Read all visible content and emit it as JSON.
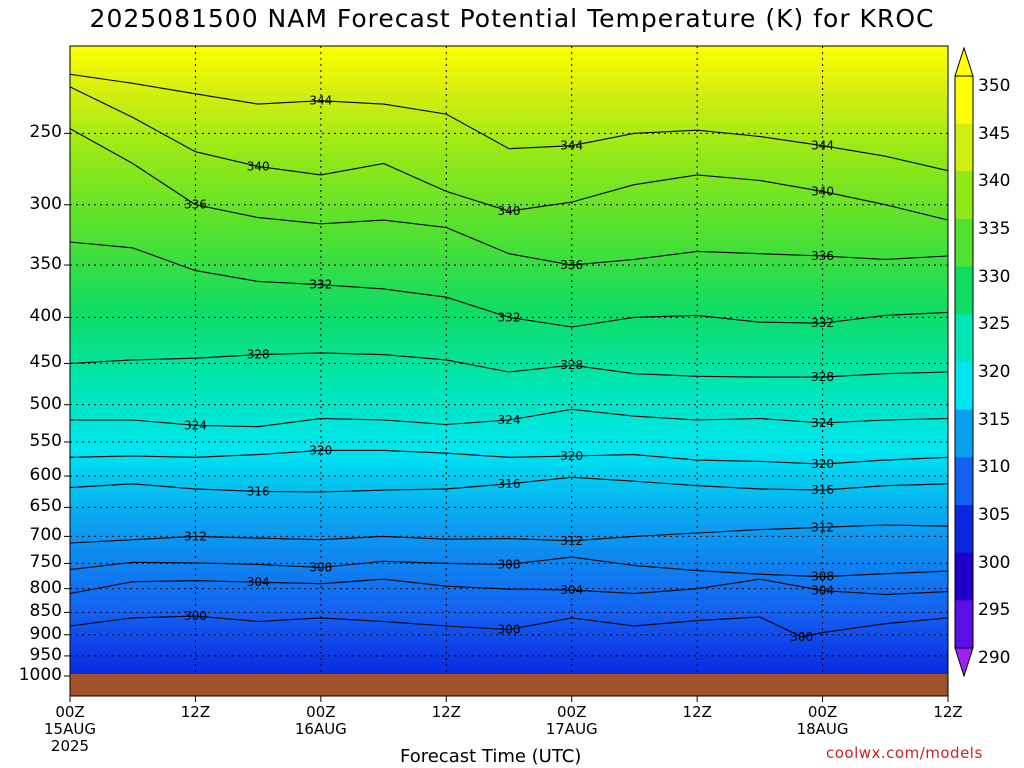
{
  "title": "2025081500 NAM Forecast Potential Temperature (K) for KROC",
  "credit": "coolwx.com/models",
  "colors": {
    "ground": "#a0522d",
    "ramp": [
      "#5a10e8",
      "#1e00c8",
      "#0a28e0",
      "#1460f0",
      "#0aa0f0",
      "#00e6f0",
      "#00e6b4",
      "#10dc64",
      "#50e030",
      "#90e818",
      "#d0ee10",
      "#ffff00"
    ]
  },
  "chart_data": {
    "type": "contour",
    "title": "2025081500 NAM Forecast Potential Temperature (K) for KROC",
    "xlabel": "Forecast Time (UTC)",
    "ylabel": "",
    "x_ticks": [
      {
        "hour": 0,
        "line1": "00Z",
        "line2": "15AUG",
        "line3": "2025"
      },
      {
        "hour": 12,
        "line1": "12Z",
        "line2": "",
        "line3": ""
      },
      {
        "hour": 24,
        "line1": "00Z",
        "line2": "16AUG",
        "line3": ""
      },
      {
        "hour": 36,
        "line1": "12Z",
        "line2": "",
        "line3": ""
      },
      {
        "hour": 48,
        "line1": "00Z",
        "line2": "17AUG",
        "line3": ""
      },
      {
        "hour": 60,
        "line1": "12Z",
        "line2": "",
        "line3": ""
      },
      {
        "hour": 72,
        "line1": "00Z",
        "line2": "18AUG",
        "line3": ""
      },
      {
        "hour": 84,
        "line1": "12Z",
        "line2": "",
        "line3": ""
      }
    ],
    "xlim_hours": [
      0,
      84
    ],
    "y_ticks": [
      "250",
      "300",
      "350",
      "400",
      "450",
      "500",
      "550",
      "600",
      "650",
      "700",
      "750",
      "800",
      "850",
      "900",
      "950",
      "1000"
    ],
    "ylim_hpa": [
      200,
      1000
    ],
    "y_scale": "log",
    "colorbar": {
      "labels": [
        "350",
        "345",
        "340",
        "335",
        "330",
        "325",
        "320",
        "315",
        "310",
        "305",
        "300",
        "295",
        "290"
      ],
      "levels": [
        290,
        295,
        300,
        305,
        310,
        315,
        320,
        325,
        330,
        335,
        340,
        345,
        350
      ]
    },
    "contour_interval": 4,
    "contours": [
      {
        "label": "300",
        "points": [
          [
            0,
            880
          ],
          [
            6,
            862
          ],
          [
            12,
            858
          ],
          [
            18,
            870
          ],
          [
            24,
            862
          ],
          [
            30,
            870
          ],
          [
            36,
            880
          ],
          [
            42,
            888
          ],
          [
            48,
            862
          ],
          [
            54,
            880
          ],
          [
            60,
            868
          ],
          [
            66,
            860
          ],
          [
            70,
            905
          ],
          [
            72,
            895
          ],
          [
            78,
            875
          ],
          [
            84,
            862
          ]
        ]
      },
      {
        "label": "304",
        "points": [
          [
            0,
            810
          ],
          [
            6,
            786
          ],
          [
            12,
            784
          ],
          [
            18,
            787
          ],
          [
            24,
            790
          ],
          [
            30,
            781
          ],
          [
            36,
            795
          ],
          [
            42,
            801
          ],
          [
            48,
            803
          ],
          [
            54,
            810
          ],
          [
            60,
            800
          ],
          [
            66,
            781
          ],
          [
            72,
            804
          ],
          [
            78,
            812
          ],
          [
            84,
            806
          ]
        ]
      },
      {
        "label": "308",
        "points": [
          [
            0,
            762
          ],
          [
            6,
            748
          ],
          [
            12,
            749
          ],
          [
            18,
            752
          ],
          [
            24,
            758
          ],
          [
            30,
            746
          ],
          [
            36,
            750
          ],
          [
            42,
            752
          ],
          [
            48,
            738
          ],
          [
            54,
            754
          ],
          [
            60,
            764
          ],
          [
            66,
            771
          ],
          [
            72,
            776
          ],
          [
            78,
            770
          ],
          [
            84,
            765
          ]
        ]
      },
      {
        "label": "312",
        "points": [
          [
            0,
            712
          ],
          [
            6,
            706
          ],
          [
            12,
            700
          ],
          [
            18,
            703
          ],
          [
            24,
            706
          ],
          [
            30,
            700
          ],
          [
            36,
            705
          ],
          [
            42,
            704
          ],
          [
            48,
            708
          ],
          [
            54,
            700
          ],
          [
            60,
            694
          ],
          [
            66,
            688
          ],
          [
            72,
            684
          ],
          [
            78,
            680
          ],
          [
            84,
            682
          ]
        ]
      },
      {
        "label": "316",
        "points": [
          [
            0,
            618
          ],
          [
            6,
            612
          ],
          [
            12,
            620
          ],
          [
            18,
            624
          ],
          [
            24,
            625
          ],
          [
            30,
            622
          ],
          [
            36,
            620
          ],
          [
            42,
            612
          ],
          [
            48,
            602
          ],
          [
            54,
            608
          ],
          [
            60,
            615
          ],
          [
            66,
            620
          ],
          [
            72,
            622
          ],
          [
            78,
            615
          ],
          [
            84,
            612
          ]
        ]
      },
      {
        "label": "320",
        "points": [
          [
            0,
            572
          ],
          [
            6,
            570
          ],
          [
            12,
            572
          ],
          [
            18,
            568
          ],
          [
            24,
            562
          ],
          [
            30,
            562
          ],
          [
            36,
            566
          ],
          [
            42,
            572
          ],
          [
            48,
            570
          ],
          [
            54,
            568
          ],
          [
            60,
            576
          ],
          [
            66,
            578
          ],
          [
            72,
            582
          ],
          [
            78,
            576
          ],
          [
            84,
            572
          ]
        ]
      },
      {
        "label": "324",
        "points": [
          [
            0,
            520
          ],
          [
            6,
            520
          ],
          [
            12,
            527
          ],
          [
            18,
            529
          ],
          [
            24,
            518
          ],
          [
            30,
            520
          ],
          [
            36,
            526
          ],
          [
            42,
            520
          ],
          [
            48,
            506
          ],
          [
            54,
            515
          ],
          [
            60,
            520
          ],
          [
            66,
            518
          ],
          [
            72,
            524
          ],
          [
            78,
            520
          ],
          [
            84,
            518
          ]
        ]
      },
      {
        "label": "328",
        "points": [
          [
            0,
            450
          ],
          [
            6,
            446
          ],
          [
            12,
            444
          ],
          [
            18,
            440
          ],
          [
            24,
            438
          ],
          [
            30,
            440
          ],
          [
            36,
            446
          ],
          [
            42,
            460
          ],
          [
            48,
            452
          ],
          [
            54,
            462
          ],
          [
            60,
            465
          ],
          [
            66,
            466
          ],
          [
            72,
            466
          ],
          [
            78,
            462
          ],
          [
            84,
            460
          ]
        ]
      },
      {
        "label": "332",
        "points": [
          [
            0,
            330
          ],
          [
            6,
            335
          ],
          [
            12,
            355
          ],
          [
            18,
            365
          ],
          [
            24,
            368
          ],
          [
            30,
            372
          ],
          [
            36,
            380
          ],
          [
            42,
            400
          ],
          [
            48,
            410
          ],
          [
            54,
            400
          ],
          [
            60,
            398
          ],
          [
            66,
            405
          ],
          [
            72,
            406
          ],
          [
            78,
            398
          ],
          [
            84,
            395
          ]
        ]
      },
      {
        "label": "336",
        "points": [
          [
            0,
            247
          ],
          [
            6,
            270
          ],
          [
            12,
            300
          ],
          [
            18,
            310
          ],
          [
            24,
            315
          ],
          [
            30,
            312
          ],
          [
            36,
            318
          ],
          [
            42,
            340
          ],
          [
            48,
            350
          ],
          [
            54,
            345
          ],
          [
            60,
            338
          ],
          [
            66,
            340
          ],
          [
            72,
            342
          ],
          [
            78,
            345
          ],
          [
            84,
            342
          ]
        ]
      },
      {
        "label": "340",
        "points": [
          [
            0,
            222
          ],
          [
            6,
            240
          ],
          [
            12,
            262
          ],
          [
            18,
            272
          ],
          [
            24,
            278
          ],
          [
            30,
            270
          ],
          [
            36,
            290
          ],
          [
            42,
            305
          ],
          [
            48,
            298
          ],
          [
            54,
            285
          ],
          [
            60,
            278
          ],
          [
            66,
            282
          ],
          [
            72,
            290
          ],
          [
            78,
            300
          ],
          [
            84,
            312
          ]
        ]
      },
      {
        "label": "344",
        "points": [
          [
            0,
            215
          ],
          [
            6,
            220
          ],
          [
            12,
            226
          ],
          [
            18,
            232
          ],
          [
            24,
            230
          ],
          [
            30,
            232
          ],
          [
            36,
            238
          ],
          [
            42,
            260
          ],
          [
            48,
            258
          ],
          [
            54,
            250
          ],
          [
            60,
            248
          ],
          [
            66,
            252
          ],
          [
            72,
            258
          ],
          [
            78,
            265
          ],
          [
            84,
            275
          ]
        ]
      }
    ]
  }
}
